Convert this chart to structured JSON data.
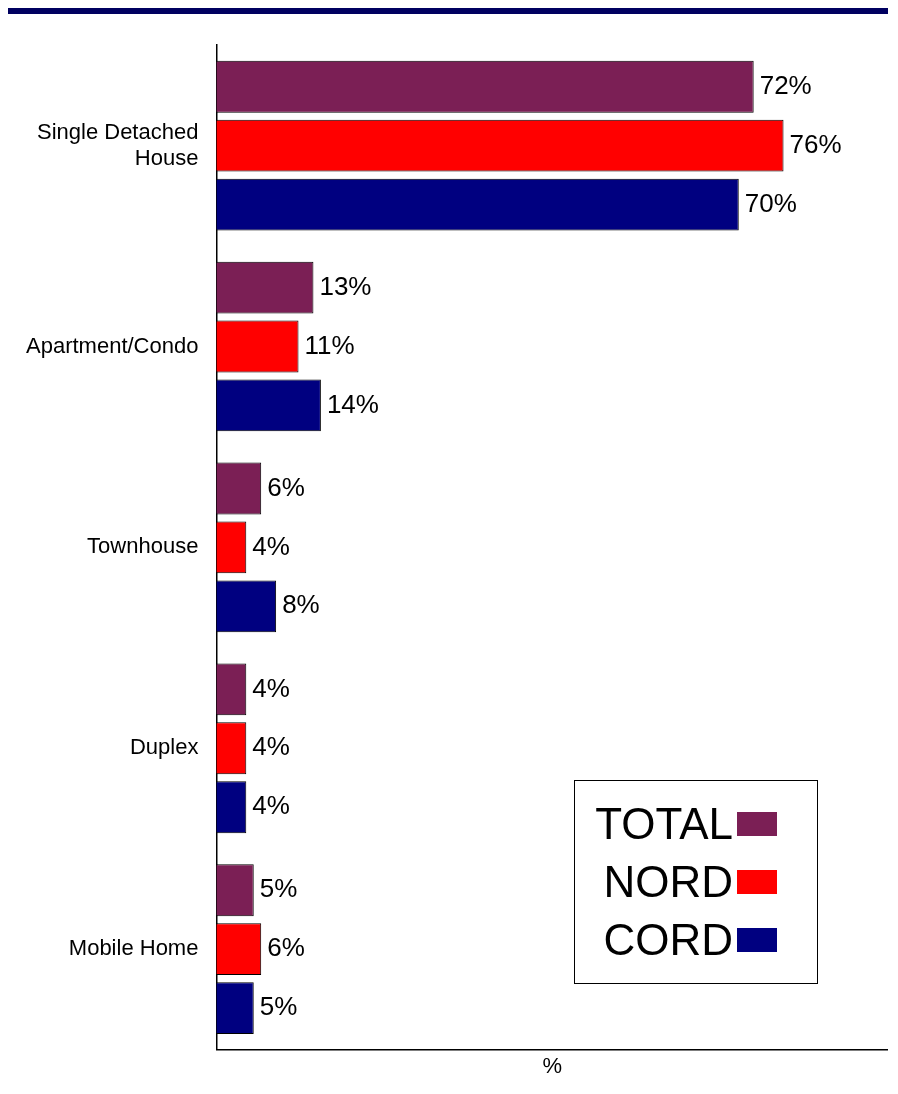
{
  "chart_data": {
    "type": "bar",
    "orientation": "horizontal",
    "categories": [
      "Single Detached House",
      "Apartment/Condo",
      "Townhouse",
      "Duplex",
      "Mobile Home"
    ],
    "series": [
      {
        "name": "TOTAL",
        "color": "#7b1f55",
        "values": [
          72,
          13,
          6,
          4,
          5
        ],
        "value_labels": [
          "72%",
          "13%",
          "6%",
          "4%",
          "5%"
        ]
      },
      {
        "name": "NORD",
        "color": "#ff0000",
        "values": [
          76,
          11,
          4,
          4,
          6
        ],
        "value_labels": [
          "76%",
          "11%",
          "4%",
          "4%",
          "6%"
        ]
      },
      {
        "name": "CORD",
        "color": "#000080",
        "values": [
          70,
          14,
          8,
          4,
          5
        ],
        "value_labels": [
          "70%",
          "14%",
          "8%",
          "4%",
          "5%"
        ]
      }
    ],
    "xlabel": "%",
    "tick_labels": "y",
    "grid": false,
    "legend": "bottom right"
  }
}
